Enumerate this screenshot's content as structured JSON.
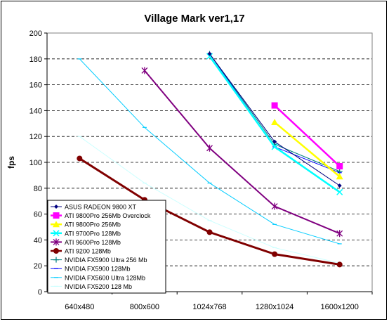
{
  "chart_data": {
    "type": "line",
    "title": "Village Mark ver1,17",
    "xlabel": "",
    "ylabel": "fps",
    "categories": [
      "640x480",
      "800x600",
      "1024x768",
      "1280x1024",
      "1600x1200"
    ],
    "ylim": [
      0,
      200
    ],
    "yticks": [
      0,
      20,
      40,
      60,
      80,
      100,
      120,
      140,
      160,
      180,
      200
    ],
    "grid": "horizontal-dashed",
    "legend_position": "bottom-left",
    "series": [
      {
        "name": "ASUS RADEON 9800 XT",
        "color": "#000080",
        "marker": "diamond",
        "width": 1,
        "values": [
          null,
          null,
          184,
          116,
          82
        ]
      },
      {
        "name": "ATI 9800Pro 256Mb Overclock",
        "color": "#ff00ff",
        "marker": "square",
        "width": 2.5,
        "values": [
          null,
          null,
          null,
          144,
          97
        ]
      },
      {
        "name": "ATI 9800Pro 256Mb",
        "color": "#ffff00",
        "marker": "triangle",
        "width": 2.5,
        "values": [
          null,
          null,
          null,
          131,
          89
        ]
      },
      {
        "name": "ATI 9700Pro 128Mb",
        "color": "#00ffff",
        "marker": "x",
        "width": 2.5,
        "values": [
          null,
          null,
          182,
          112,
          77
        ]
      },
      {
        "name": "ATI 9600Pro 128Mb",
        "color": "#800080",
        "marker": "star",
        "width": 2,
        "values": [
          null,
          171,
          111,
          66,
          45
        ]
      },
      {
        "name": "ATI 9200 128Mb",
        "color": "#800000",
        "marker": "circle",
        "width": 3,
        "values": [
          103,
          71,
          46,
          29,
          21
        ]
      },
      {
        "name": "NVIDIA FX5900 Ultra 256 Mb",
        "color": "#008080",
        "marker": "plus",
        "width": 1,
        "values": [
          null,
          null,
          184,
          114,
          93
        ]
      },
      {
        "name": "NVIDIA FX5900 128Mb",
        "color": "#0000ff",
        "marker": "dash",
        "width": 1,
        "values": [
          null,
          null,
          184,
          112,
          92
        ]
      },
      {
        "name": "NVIDIA FX5600 Ultra 128Mb",
        "color": "#00ccff",
        "marker": "dash",
        "width": 1,
        "values": [
          180,
          127,
          84,
          52,
          37
        ]
      },
      {
        "name": "NVIDIA FX5200 128 Mb",
        "color": "#ccffff",
        "marker": "dash",
        "width": 1,
        "values": [
          120,
          84,
          55,
          34,
          22
        ]
      }
    ]
  }
}
